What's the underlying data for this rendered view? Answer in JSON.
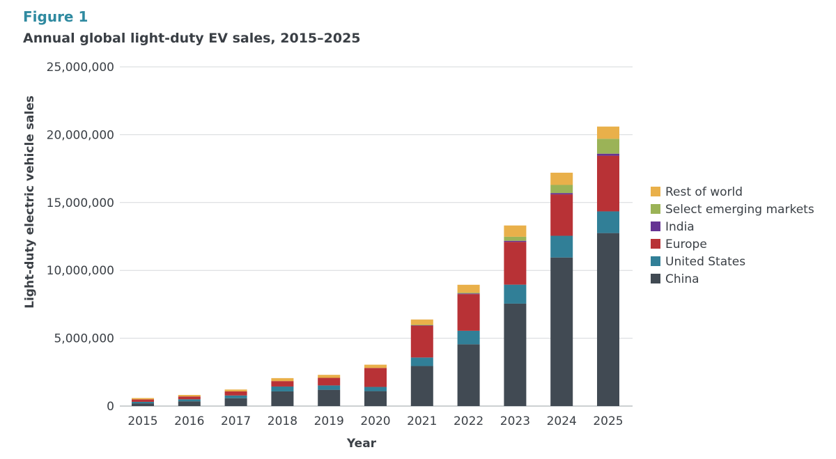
{
  "figure": {
    "label": "Figure 1",
    "title": "Annual global light-duty EV sales, 2015–2025"
  },
  "chart_data": {
    "type": "bar",
    "stacked": true,
    "categories": [
      "2015",
      "2016",
      "2017",
      "2018",
      "2019",
      "2020",
      "2021",
      "2022",
      "2023",
      "2024",
      "2025"
    ],
    "series": [
      {
        "name": "China",
        "color": "#414a53",
        "values": [
          200000,
          350000,
          580000,
          1080000,
          1200000,
          1100000,
          2950000,
          4550000,
          7550000,
          10950000,
          12750000
        ]
      },
      {
        "name": "United States",
        "color": "#317f97",
        "values": [
          110000,
          150000,
          200000,
          360000,
          320000,
          310000,
          630000,
          1000000,
          1400000,
          1600000,
          1600000
        ]
      },
      {
        "name": "Europe",
        "color": "#b83236",
        "values": [
          180000,
          210000,
          300000,
          400000,
          560000,
          1400000,
          2350000,
          2700000,
          3150000,
          3050000,
          4100000
        ]
      },
      {
        "name": "India",
        "color": "#653393",
        "values": [
          0,
          0,
          0,
          0,
          0,
          0,
          20000,
          50000,
          80000,
          100000,
          150000
        ]
      },
      {
        "name": "Select emerging markets",
        "color": "#9bb357",
        "values": [
          0,
          0,
          0,
          0,
          0,
          0,
          50000,
          60000,
          300000,
          600000,
          1100000
        ]
      },
      {
        "name": "Rest of world",
        "color": "#e9b04a",
        "values": [
          100000,
          110000,
          140000,
          220000,
          220000,
          240000,
          380000,
          580000,
          830000,
          900000,
          900000
        ]
      }
    ],
    "ylim": [
      0,
      25000000
    ],
    "yticks": [
      0,
      5000000,
      10000000,
      15000000,
      20000000,
      25000000
    ],
    "ytick_labels": [
      "0",
      "5,000,000",
      "10,000,000",
      "15,000,000",
      "20,000,000",
      "25,000,000"
    ],
    "xlabel": "Year",
    "ylabel": "Light-duty electric vehicle sales",
    "grid": true,
    "legend_position": "right",
    "legend_order": [
      "Rest of world",
      "Select emerging markets",
      "India",
      "Europe",
      "United States",
      "China"
    ]
  }
}
